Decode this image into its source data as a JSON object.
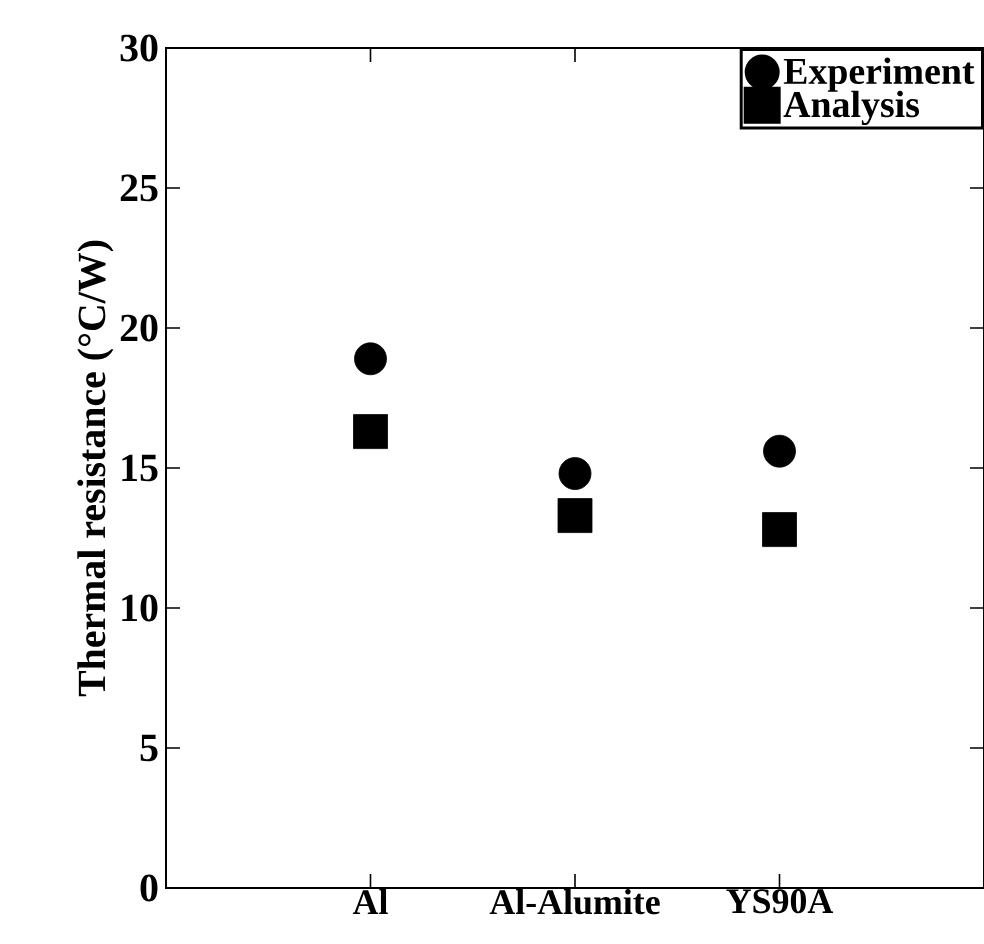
{
  "chart_data": {
    "type": "scatter",
    "ylabel": "Thermal resistance (°C/W)",
    "categories": [
      "Al",
      "Al-Alumite",
      "YS90A"
    ],
    "series": [
      {
        "name": "Experiment",
        "color": "#000000",
        "marker": "circle",
        "values": [
          18.9,
          14.8,
          15.6
        ]
      },
      {
        "name": "Analysis",
        "color": "#000000",
        "marker": "square",
        "values": [
          16.3,
          13.3,
          12.8
        ]
      }
    ],
    "ylim": [
      0,
      30
    ],
    "yticks": [
      0,
      5,
      10,
      15,
      20,
      25,
      30
    ],
    "legend": "top right"
  }
}
